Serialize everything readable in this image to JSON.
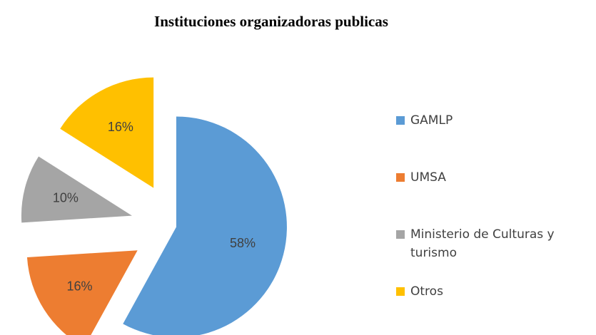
{
  "chart_data": {
    "type": "pie",
    "title": "Instituciones organizadoras publicas",
    "categories": [
      "GAMLP",
      "UMSA",
      "Ministerio de Culturas y turismo",
      "Otros"
    ],
    "values": [
      58,
      16,
      10,
      16
    ],
    "value_labels": [
      "58%",
      "16%",
      "10%",
      "16%"
    ],
    "colors": [
      "#5b9bd5",
      "#ed7d31",
      "#a5a5a5",
      "#ffc000"
    ],
    "legend": "right"
  }
}
